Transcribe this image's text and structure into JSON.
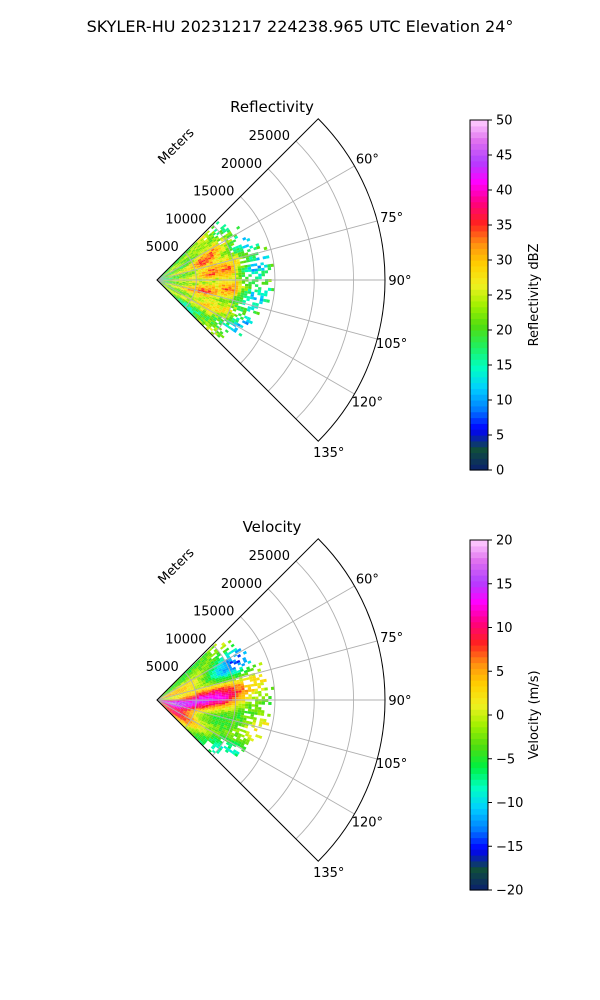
{
  "figure": {
    "suptitle": "SKYLER-HU  20231217  224238.965 UTC Elevation 24°"
  },
  "chart_data": [
    {
      "type": "polar-sector-heatmap",
      "title": "Reflectivity",
      "radial_label": "Meters",
      "radial_ticks": [
        5000,
        10000,
        15000,
        20000,
        25000
      ],
      "radial_tick_labels": [
        "5000",
        "10000",
        "15000",
        "20000",
        "25000"
      ],
      "rlim": [
        0,
        29000
      ],
      "azimuth_ticks_deg": [
        60,
        75,
        90,
        105,
        120,
        135
      ],
      "azimuth_tick_labels": [
        "60°",
        "75°",
        "90°",
        "105°",
        "120°",
        "135°"
      ],
      "azimuth_range_deg": [
        45,
        135
      ],
      "grid": true,
      "data_extent_m": 14000,
      "echo_cores": [
        {
          "azimuth_deg": 73,
          "range_m": 6000,
          "value": 35
        },
        {
          "azimuth_deg": 103,
          "range_m": 5500,
          "value": 34
        },
        {
          "azimuth_deg": 88,
          "range_m": 9000,
          "value": 27
        }
      ],
      "colorbar": {
        "label": "Reflectivity dBZ",
        "min": 0,
        "max": 50,
        "ticks": [
          0,
          5,
          10,
          15,
          20,
          25,
          30,
          35,
          40,
          45,
          50
        ],
        "tick_labels": [
          "0",
          "5",
          "10",
          "15",
          "20",
          "25",
          "30",
          "35",
          "40",
          "45",
          "50"
        ],
        "colors": [
          "#0a1f6e",
          "#104d3c",
          "#0000ff",
          "#0080ff",
          "#00d0ff",
          "#00ffc0",
          "#20f060",
          "#50dd10",
          "#a0f000",
          "#f0f020",
          "#ffd000",
          "#ff9010",
          "#ff2020",
          "#ff0080",
          "#ff00ff",
          "#b040ff",
          "#e070f0",
          "#ffd0ff"
        ]
      }
    },
    {
      "type": "polar-sector-heatmap",
      "title": "Velocity",
      "radial_label": "Meters",
      "radial_ticks": [
        5000,
        10000,
        15000,
        20000,
        25000
      ],
      "radial_tick_labels": [
        "5000",
        "10000",
        "15000",
        "20000",
        "25000"
      ],
      "rlim": [
        0,
        29000
      ],
      "azimuth_ticks_deg": [
        60,
        75,
        90,
        105,
        120,
        135
      ],
      "azimuth_tick_labels": [
        "60°",
        "75°",
        "90°",
        "105°",
        "120°",
        "135°"
      ],
      "azimuth_range_deg": [
        45,
        135
      ],
      "grid": true,
      "data_extent_m": 14000,
      "colorbar": {
        "label": "Velocity (m/s)",
        "min": -20,
        "max": 20,
        "ticks": [
          -20,
          -15,
          -10,
          -5,
          0,
          5,
          10,
          15,
          20
        ],
        "tick_labels": [
          "−20",
          "−15",
          "−10",
          "−5",
          "0",
          "5",
          "10",
          "15",
          "20"
        ],
        "colors": [
          "#0a1f6e",
          "#104d3c",
          "#0000ff",
          "#0080ff",
          "#00d0ff",
          "#00ffc0",
          "#00f040",
          "#50dd10",
          "#a0f000",
          "#f0f020",
          "#ffd000",
          "#ff9010",
          "#ff2020",
          "#ff0080",
          "#ff00ff",
          "#b040ff",
          "#e070f0",
          "#ffd0ff"
        ]
      }
    }
  ]
}
